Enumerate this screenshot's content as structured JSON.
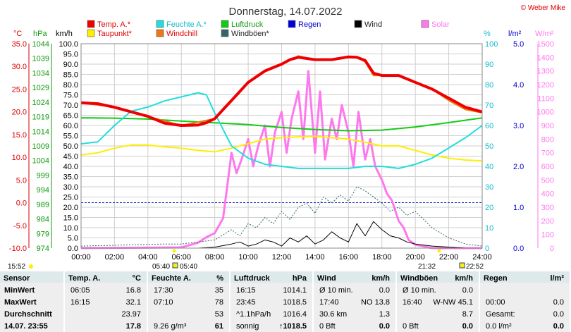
{
  "header": {
    "title": "Donnerstag, 14.07.2022",
    "credit": "© Weber Mike"
  },
  "legend": [
    {
      "label": "Temp. A.*",
      "color": "#ee0000"
    },
    {
      "label": "Feuchte A.*",
      "color": "#22dddd"
    },
    {
      "label": "Luftdruck",
      "color": "#11cc11"
    },
    {
      "label": "Regen",
      "color": "#0000dd"
    },
    {
      "label": "Wind",
      "color": "#000000"
    },
    {
      "label": "Solar",
      "color": "#ff77ee"
    },
    {
      "label": "Taupunkt*",
      "color": "#ffee00"
    },
    {
      "label": "Windchill",
      "color": "#ee7711"
    },
    {
      "label": "Windböen*",
      "color": "#336666"
    }
  ],
  "axes": {
    "temp_unit": "°C",
    "press_unit": "hPa",
    "wind_unit": "km/h",
    "hum_unit": "%",
    "rain_unit": "l/m²",
    "solar_unit": "W/m²",
    "temp_ticks": [
      "35.0",
      "30.0",
      "25.0",
      "20.0",
      "15.0",
      "10.0",
      "5.0",
      "0.0",
      "-5.0",
      "-10.0"
    ],
    "press_ticks": [
      "1044",
      "1039",
      "1034",
      "1029",
      "1024",
      "1019",
      "1014",
      "1009",
      "1004",
      "999",
      "994",
      "989",
      "984",
      "979",
      "974"
    ],
    "wind_ticks": [
      "100.0",
      "95.0",
      "90.0",
      "85.0",
      "80.0",
      "75.0",
      "70.0",
      "65.0",
      "60.0",
      "55.0",
      "50.0",
      "45.0",
      "40.0",
      "35.0",
      "30.0",
      "25.0",
      "20.0",
      "15.0",
      "10.0",
      "5.0",
      "0.0"
    ],
    "hum_ticks": [
      "100",
      "90",
      "80",
      "70",
      "60",
      "50",
      "40",
      "30",
      "20",
      "10",
      "0"
    ],
    "rain_ticks": [
      "5.0",
      "4.0",
      "3.0",
      "2.0",
      "1.0",
      "0.0"
    ],
    "solar_ticks": [
      "1500",
      "1400",
      "1300",
      "1200",
      "1100",
      "1000",
      "900",
      "800",
      "700",
      "600",
      "500",
      "400",
      "300",
      "200",
      "100",
      "0"
    ],
    "time_ticks": [
      "00:00",
      "02:00",
      "04:00",
      "06:00",
      "08:00",
      "10:00",
      "12:00",
      "14:00",
      "16:00",
      "18:00",
      "20:00",
      "22:00",
      "24:00"
    ]
  },
  "sun": {
    "moonset": "15:52",
    "sunrise": "05:40",
    "sunrise2": "05:40",
    "sunset": "21:32",
    "sunset2": "22:52"
  },
  "chart_data": {
    "type": "line",
    "x_unit": "hour",
    "xlim": [
      0,
      24
    ],
    "series": [
      {
        "name": "Temp. A.*",
        "axis": "°C",
        "ylim": [
          -10,
          35
        ],
        "x": [
          0,
          1,
          2,
          3,
          4,
          5,
          6,
          7,
          7.5,
          8,
          8.5,
          9,
          10,
          11,
          12,
          12.5,
          13,
          14,
          15,
          16,
          16.5,
          17,
          17.5,
          18,
          19,
          20,
          21,
          22,
          23,
          24
        ],
        "y": [
          22,
          21.8,
          21,
          20,
          19,
          17.5,
          17,
          17.1,
          17.6,
          18.5,
          20.5,
          22.5,
          26.5,
          29,
          30.5,
          31.5,
          32,
          31.5,
          31.5,
          32.1,
          32,
          31.3,
          28.5,
          28,
          28,
          26.5,
          25,
          23,
          21,
          20
        ]
      },
      {
        "name": "Windchill",
        "axis": "°C",
        "ylim": [
          -10,
          35
        ],
        "x": [
          0,
          2,
          4,
          6,
          8,
          9,
          10,
          11,
          12,
          13,
          14,
          15,
          16,
          16.5,
          17,
          17.5,
          18,
          19,
          20,
          21,
          22,
          23,
          24
        ],
        "y": [
          22,
          21,
          19,
          17,
          18.5,
          22.5,
          26.5,
          29.2,
          30.6,
          32.3,
          31.5,
          31.5,
          32.1,
          32,
          31,
          28,
          28,
          28,
          26.5,
          25,
          22.5,
          20.5,
          19.8
        ]
      },
      {
        "name": "Taupunkt*",
        "axis": "°C",
        "ylim": [
          -10,
          35
        ],
        "x": [
          0,
          1,
          2,
          3,
          4,
          5,
          6,
          7,
          8,
          9,
          10,
          11,
          12,
          13,
          14,
          15,
          16,
          17,
          18,
          19,
          20,
          21,
          22,
          23,
          24
        ],
        "y": [
          10.5,
          11,
          12,
          12.7,
          12.7,
          12.3,
          12,
          11.5,
          11.2,
          12,
          13,
          14,
          14.3,
          14.5,
          14.6,
          14.3,
          14,
          13.3,
          12.5,
          12.5,
          11.5,
          10.5,
          9.8,
          9.4,
          9.2
        ]
      },
      {
        "name": "Feuchte A.*",
        "axis": "%",
        "ylim": [
          0,
          100
        ],
        "x": [
          0,
          1,
          2,
          3,
          4,
          5,
          6,
          7,
          7.5,
          8,
          9,
          10,
          11,
          12,
          13,
          14,
          15,
          16,
          17,
          18,
          19,
          20,
          21,
          22,
          23,
          24
        ],
        "y": [
          51,
          52,
          60,
          67,
          69,
          72,
          74,
          76,
          75,
          66,
          50,
          44,
          41,
          40,
          39,
          39,
          39,
          39,
          40,
          40,
          39,
          41,
          44,
          49,
          54,
          60
        ]
      },
      {
        "name": "Luftdruck",
        "axis": "hPa",
        "ylim": [
          974,
          1044
        ],
        "x": [
          0,
          2,
          4,
          6,
          8,
          10,
          12,
          14,
          16,
          18,
          20,
          22,
          24
        ],
        "y": [
          1018.6,
          1018.5,
          1018.2,
          1017.5,
          1016.9,
          1016.3,
          1015.3,
          1014.6,
          1014.2,
          1014.4,
          1015.5,
          1017.0,
          1018.6
        ]
      },
      {
        "name": "Wind",
        "axis": "km/h",
        "ylim": [
          0,
          100
        ],
        "x": [
          0,
          6,
          7,
          8,
          9,
          9.5,
          10,
          10.5,
          11,
          11.5,
          12,
          12.5,
          13,
          13.5,
          14,
          14.5,
          15,
          15.5,
          16,
          16.5,
          17,
          17.5,
          18,
          18.5,
          19,
          19.5,
          20,
          21,
          22,
          23,
          24
        ],
        "y": [
          0,
          0,
          0,
          0.5,
          2,
          3,
          1,
          2,
          4,
          3,
          1,
          5,
          3,
          6,
          2,
          4,
          8,
          5,
          3,
          12,
          6,
          13,
          9,
          6,
          5,
          3,
          2,
          1,
          0.5,
          0,
          0
        ]
      },
      {
        "name": "Windböen*",
        "axis": "km/h",
        "ylim": [
          0,
          100
        ],
        "x": [
          0,
          5,
          6,
          7,
          8,
          9,
          9.5,
          10,
          10.5,
          11,
          11.5,
          12,
          12.5,
          13,
          13.5,
          14,
          14.5,
          15,
          15.5,
          16,
          16.5,
          17,
          17.5,
          18,
          18.5,
          19,
          19.5,
          20,
          21,
          22,
          23,
          24
        ],
        "y": [
          1,
          2,
          2,
          3,
          4,
          9,
          6,
          12,
          10,
          15,
          12,
          18,
          14,
          20,
          22,
          17,
          25,
          22,
          26,
          23,
          30,
          28,
          25,
          22,
          18,
          20,
          16,
          18,
          10,
          5,
          2,
          1
        ]
      },
      {
        "name": "Solar",
        "axis": "W/m²",
        "ylim": [
          0,
          1500
        ],
        "x": [
          0,
          6,
          7,
          7.5,
          8,
          8.5,
          9,
          9.3,
          9.6,
          10,
          10.3,
          10.6,
          11,
          11.3,
          11.6,
          12,
          12.3,
          12.6,
          13,
          13.3,
          13.6,
          14,
          14.3,
          14.6,
          15,
          15.3,
          15.6,
          16,
          16.3,
          16.6,
          17,
          17.3,
          17.6,
          18,
          18.3,
          18.6,
          19,
          19.3,
          19.6,
          20,
          21,
          24
        ],
        "y": [
          0,
          5,
          40,
          80,
          110,
          220,
          700,
          550,
          650,
          800,
          600,
          750,
          900,
          600,
          850,
          1000,
          700,
          950,
          1150,
          800,
          1300,
          700,
          1150,
          650,
          950,
          800,
          1050,
          850,
          600,
          1000,
          650,
          800,
          600,
          500,
          400,
          350,
          200,
          150,
          60,
          25,
          0,
          0
        ]
      },
      {
        "name": "Regen",
        "axis": "l/m²",
        "ylim": [
          0,
          5
        ],
        "x": [
          0,
          24
        ],
        "y": [
          0,
          0
        ]
      }
    ]
  },
  "table": {
    "headers": [
      {
        "a": "Sensor",
        "b": ""
      },
      {
        "a": "Temp. A.",
        "b": "°C"
      },
      {
        "a": "Feuchte A.",
        "b": "%"
      },
      {
        "a": "Luftdruck",
        "b": "hPa"
      },
      {
        "a": "Wind",
        "b": "km/h"
      },
      {
        "a": "Windböen",
        "b": "km/h"
      },
      {
        "a": "Regen",
        "b": "l/m²"
      }
    ],
    "row_labels": [
      "MinWert",
      "MaxWert",
      "Durchschnitt",
      "14.07. 23:55"
    ],
    "temp": [
      [
        "06:05",
        "16.8"
      ],
      [
        "16:15",
        "32.1"
      ],
      [
        "",
        "23.97"
      ],
      [
        "",
        "17.8"
      ]
    ],
    "hum": [
      [
        "17:30",
        "35"
      ],
      [
        "07:10",
        "78"
      ],
      [
        "",
        "53"
      ],
      [
        "9.26 g/m³",
        "61"
      ]
    ],
    "press": [
      [
        "16:15",
        "1014.1"
      ],
      [
        "23:45",
        "1018.5"
      ],
      [
        "^1.1hPa/h",
        "1016.4"
      ],
      [
        "sonnig",
        "↑1018.5"
      ]
    ],
    "wind": [
      [
        "Ø 10 min.",
        "0.0"
      ],
      [
        "17:40",
        "NO 13.8"
      ],
      [
        "30.6 km",
        "1.3"
      ],
      [
        "0 Bft",
        "0.0"
      ]
    ],
    "gust": [
      [
        "Ø 10 min.",
        "0.0"
      ],
      [
        "16:40",
        "W-NW 45.1"
      ],
      [
        "",
        "8.7"
      ],
      [
        "0 Bft",
        "0.0"
      ]
    ],
    "rain": [
      [
        "",
        ""
      ],
      [
        "00:00",
        "0.0"
      ],
      [
        "Gesamt:",
        "0.0"
      ],
      [
        "0.0 l/m²",
        "0.0"
      ]
    ]
  }
}
